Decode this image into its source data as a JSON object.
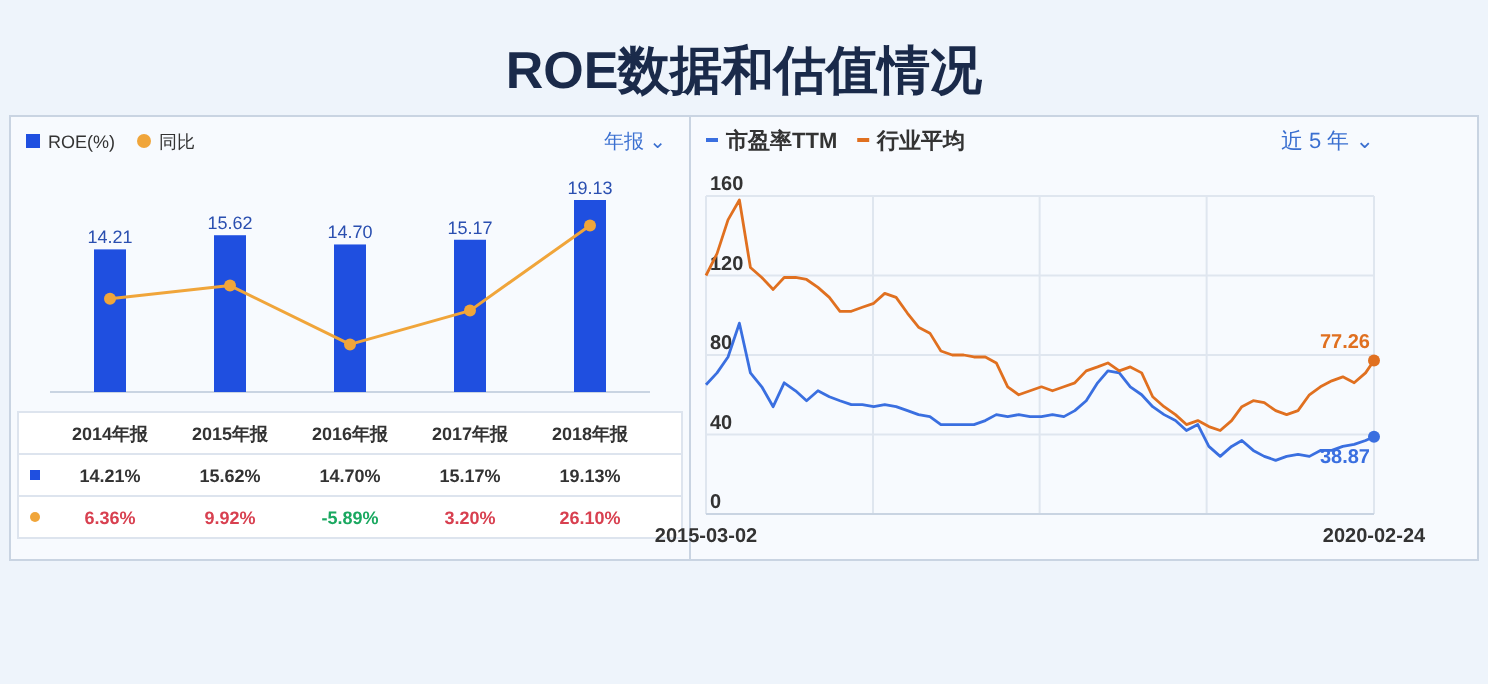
{
  "chart_data": [
    {
      "type": "bar",
      "title": "ROE数据和估值情况",
      "categories": [
        "2014年报",
        "2015年报",
        "2016年报",
        "2017年报",
        "2018年报"
      ],
      "series": [
        {
          "name": "ROE(%)",
          "type": "bar",
          "color": "#1f4fe0",
          "values": [
            14.21,
            15.62,
            14.7,
            15.17,
            19.13
          ],
          "value_labels": [
            "14.21%",
            "15.62%",
            "14.70%",
            "15.17%",
            "19.13%"
          ]
        },
        {
          "name": "同比",
          "type": "line",
          "axis": "y2",
          "color": "#f0a53a",
          "values": [
            6.36,
            9.92,
            -5.89,
            3.2,
            26.1
          ],
          "value_labels": [
            "6.36%",
            "9.92%",
            "-5.89%",
            "3.20%",
            "26.10%"
          ]
        }
      ],
      "marker": "circle",
      "legend": "top left",
      "annotations": [
        "年报 ⌄",
        {
          "text": "14.21",
          "x": "2014年报",
          "y": 14.21
        },
        {
          "text": "15.62",
          "x": "2015年报",
          "y": 15.62
        },
        {
          "text": "14.70",
          "x": "2016年报",
          "y": 14.7
        },
        {
          "text": "15.17",
          "x": "2017年报",
          "y": 15.17
        },
        {
          "text": "19.13",
          "x": "2018年报",
          "y": 19.13
        }
      ]
    },
    {
      "type": "line",
      "x": [
        "2015-03-02",
        "2015-04-01",
        "2015-05-01",
        "2015-06-01",
        "2015-07-01",
        "2015-08-01",
        "2015-09-01",
        "2015-10-01",
        "2015-11-01",
        "2015-12-01",
        "2016-01-01",
        "2016-02-01",
        "2016-03-01",
        "2016-04-01",
        "2016-05-01",
        "2016-06-01",
        "2016-07-01",
        "2016-08-01",
        "2016-09-01",
        "2016-10-01",
        "2016-11-01",
        "2016-12-01",
        "2017-01-01",
        "2017-02-01",
        "2017-03-01",
        "2017-04-01",
        "2017-05-01",
        "2017-06-01",
        "2017-07-01",
        "2017-08-01",
        "2017-09-01",
        "2017-10-01",
        "2017-11-01",
        "2017-12-01",
        "2018-01-01",
        "2018-02-01",
        "2018-03-01",
        "2018-04-01",
        "2018-05-01",
        "2018-06-01",
        "2018-07-01",
        "2018-08-01",
        "2018-09-01",
        "2018-10-01",
        "2018-11-01",
        "2018-12-01",
        "2019-01-01",
        "2019-02-01",
        "2019-03-01",
        "2019-04-01",
        "2019-05-01",
        "2019-06-01",
        "2019-07-01",
        "2019-08-01",
        "2019-09-01",
        "2019-10-01",
        "2019-11-01",
        "2019-12-01",
        "2020-01-01",
        "2020-02-01",
        "2020-02-24"
      ],
      "series": [
        {
          "name": "市盈率TTM",
          "color": "#3a6fe0",
          "values": [
            65,
            71,
            79,
            96,
            71,
            64,
            54,
            66,
            62,
            57,
            62,
            59,
            57,
            55,
            55,
            54,
            55,
            54,
            52,
            50,
            49,
            45,
            45,
            45,
            45,
            47,
            50,
            49,
            50,
            49,
            49,
            50,
            49,
            52,
            57,
            66,
            72,
            71,
            64,
            60,
            54,
            50,
            47,
            42,
            45,
            34,
            29,
            34,
            37,
            32,
            29,
            27,
            29,
            30,
            29,
            32,
            32,
            34,
            35,
            37,
            38.87
          ]
        },
        {
          "name": "行业平均",
          "color": "#e07020",
          "values": [
            120,
            131,
            148,
            158,
            124,
            119,
            113,
            119,
            119,
            118,
            114,
            109,
            102,
            102,
            104,
            106,
            111,
            109,
            101,
            94,
            91,
            82,
            80,
            80,
            79,
            79,
            76,
            64,
            60,
            62,
            64,
            62,
            64,
            66,
            72,
            74,
            76,
            72,
            74,
            71,
            59,
            54,
            50,
            45,
            47,
            44,
            42,
            47,
            54,
            57,
            56,
            52,
            50,
            52,
            60,
            64,
            67,
            69,
            66,
            71,
            77.26
          ]
        }
      ],
      "xlim": [
        "2015-03-02",
        "2020-02-24"
      ],
      "xticks": [
        {
          "value": "2015-03-02",
          "label": "2015-03-02"
        },
        {
          "value": "2016-05-30",
          "label": null
        },
        {
          "value": "2017-08-27",
          "label": null
        },
        {
          "value": "2018-11-25",
          "label": null
        },
        {
          "value": "2020-02-24",
          "label": "2020-02-24"
        }
      ],
      "ylim": [
        0,
        160
      ],
      "yticks": [
        0,
        40,
        80,
        120,
        160
      ],
      "grid": true,
      "legend": "top left",
      "annotations": [
        {
          "text": "77.26",
          "x": "2020-02-24",
          "y": 77.26
        },
        {
          "text": "38.87",
          "x": "2020-02-24",
          "y": 38.87
        },
        "近 5 年 ⌄"
      ]
    }
  ]
}
